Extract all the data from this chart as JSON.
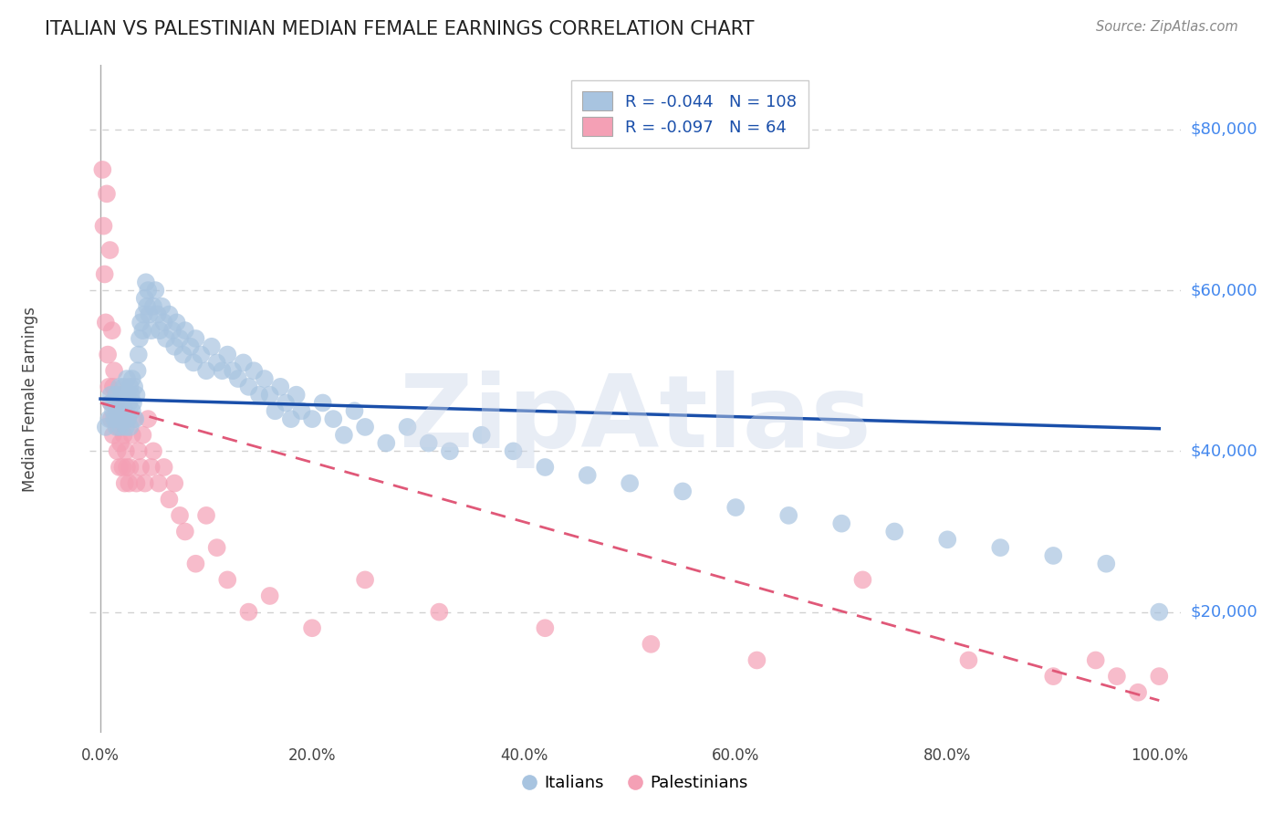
{
  "title": "ITALIAN VS PALESTINIAN MEDIAN FEMALE EARNINGS CORRELATION CHART",
  "source": "Source: ZipAtlas.com",
  "ylabel": "Median Female Earnings",
  "ytick_labels": [
    "$20,000",
    "$40,000",
    "$60,000",
    "$80,000"
  ],
  "ytick_values": [
    20000,
    40000,
    60000,
    80000
  ],
  "xtick_labels": [
    "0.0%",
    "20.0%",
    "40.0%",
    "60.0%",
    "80.0%",
    "100.0%"
  ],
  "xtick_values": [
    0,
    0.2,
    0.4,
    0.6,
    0.8,
    1.0
  ],
  "xlim": [
    -0.01,
    1.02
  ],
  "ylim": [
    5000,
    88000
  ],
  "legend_italians": "Italians",
  "legend_palestinians": "Palestinians",
  "R_italians": -0.044,
  "N_italians": 108,
  "R_palestinians": -0.097,
  "N_palestinians": 64,
  "italian_color": "#a8c4e0",
  "palestinian_color": "#f4a0b5",
  "italian_line_color": "#1a4faa",
  "palestinian_line_color": "#e05878",
  "watermark": "ZipAtlas",
  "background_color": "#ffffff",
  "grid_color": "#cccccc",
  "title_fontsize": 15,
  "axis_label_fontsize": 12,
  "tick_fontsize": 12,
  "ytick_color": "#4488ee",
  "italians_x": [
    0.005,
    0.008,
    0.01,
    0.01,
    0.012,
    0.013,
    0.014,
    0.015,
    0.015,
    0.016,
    0.017,
    0.018,
    0.018,
    0.019,
    0.02,
    0.02,
    0.021,
    0.022,
    0.022,
    0.023,
    0.024,
    0.025,
    0.025,
    0.026,
    0.027,
    0.028,
    0.028,
    0.029,
    0.03,
    0.03,
    0.031,
    0.032,
    0.033,
    0.034,
    0.035,
    0.036,
    0.037,
    0.038,
    0.04,
    0.041,
    0.042,
    0.043,
    0.044,
    0.045,
    0.046,
    0.048,
    0.05,
    0.052,
    0.054,
    0.056,
    0.058,
    0.06,
    0.062,
    0.065,
    0.068,
    0.07,
    0.072,
    0.075,
    0.078,
    0.08,
    0.085,
    0.088,
    0.09,
    0.095,
    0.1,
    0.105,
    0.11,
    0.115,
    0.12,
    0.125,
    0.13,
    0.135,
    0.14,
    0.145,
    0.15,
    0.155,
    0.16,
    0.165,
    0.17,
    0.175,
    0.18,
    0.185,
    0.19,
    0.2,
    0.21,
    0.22,
    0.23,
    0.24,
    0.25,
    0.27,
    0.29,
    0.31,
    0.33,
    0.36,
    0.39,
    0.42,
    0.46,
    0.5,
    0.55,
    0.6,
    0.65,
    0.7,
    0.75,
    0.8,
    0.85,
    0.9,
    0.95,
    1.0
  ],
  "italians_y": [
    43000,
    44000,
    46000,
    47000,
    45000,
    44000,
    46000,
    43000,
    47000,
    45000,
    44000,
    46000,
    48000,
    43000,
    45000,
    47000,
    44000,
    46000,
    48000,
    45000,
    43000,
    47000,
    49000,
    44000,
    46000,
    48000,
    43000,
    47000,
    45000,
    49000,
    46000,
    48000,
    44000,
    47000,
    50000,
    52000,
    54000,
    56000,
    55000,
    57000,
    59000,
    61000,
    58000,
    60000,
    57000,
    55000,
    58000,
    60000,
    57000,
    55000,
    58000,
    56000,
    54000,
    57000,
    55000,
    53000,
    56000,
    54000,
    52000,
    55000,
    53000,
    51000,
    54000,
    52000,
    50000,
    53000,
    51000,
    50000,
    52000,
    50000,
    49000,
    51000,
    48000,
    50000,
    47000,
    49000,
    47000,
    45000,
    48000,
    46000,
    44000,
    47000,
    45000,
    44000,
    46000,
    44000,
    42000,
    45000,
    43000,
    41000,
    43000,
    41000,
    40000,
    42000,
    40000,
    38000,
    37000,
    36000,
    35000,
    33000,
    32000,
    31000,
    30000,
    29000,
    28000,
    27000,
    26000,
    20000
  ],
  "palestinians_x": [
    0.002,
    0.003,
    0.004,
    0.005,
    0.006,
    0.007,
    0.008,
    0.009,
    0.01,
    0.01,
    0.011,
    0.012,
    0.012,
    0.013,
    0.014,
    0.015,
    0.016,
    0.017,
    0.018,
    0.019,
    0.02,
    0.021,
    0.022,
    0.023,
    0.024,
    0.025,
    0.026,
    0.027,
    0.028,
    0.03,
    0.032,
    0.034,
    0.036,
    0.038,
    0.04,
    0.042,
    0.045,
    0.048,
    0.05,
    0.055,
    0.06,
    0.065,
    0.07,
    0.075,
    0.08,
    0.09,
    0.1,
    0.11,
    0.12,
    0.14,
    0.16,
    0.2,
    0.25,
    0.32,
    0.42,
    0.52,
    0.62,
    0.72,
    0.82,
    0.9,
    0.94,
    0.96,
    0.98,
    1.0
  ],
  "palestinians_y": [
    75000,
    68000,
    62000,
    56000,
    72000,
    52000,
    48000,
    65000,
    46000,
    44000,
    55000,
    48000,
    42000,
    50000,
    44000,
    46000,
    40000,
    43000,
    38000,
    41000,
    44000,
    38000,
    42000,
    36000,
    40000,
    38000,
    44000,
    36000,
    38000,
    42000,
    44000,
    36000,
    40000,
    38000,
    42000,
    36000,
    44000,
    38000,
    40000,
    36000,
    38000,
    34000,
    36000,
    32000,
    30000,
    26000,
    32000,
    28000,
    24000,
    20000,
    22000,
    18000,
    24000,
    20000,
    18000,
    16000,
    14000,
    24000,
    14000,
    12000,
    14000,
    12000,
    10000,
    12000
  ],
  "italian_trend": [
    46500,
    42800
  ],
  "palestinian_trend": [
    46000,
    9000
  ]
}
